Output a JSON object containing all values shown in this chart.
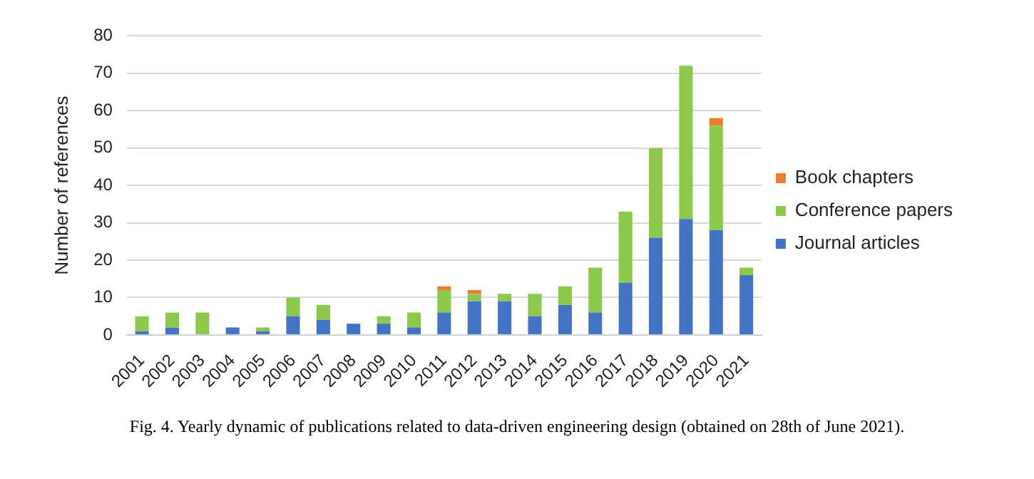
{
  "chart_data": {
    "type": "bar",
    "stacked": true,
    "ylabel": "Number of references",
    "categories": [
      "2001",
      "2002",
      "2003",
      "2004",
      "2005",
      "2006",
      "2007",
      "2008",
      "2009",
      "2010",
      "2011",
      "2012",
      "2013",
      "2014",
      "2015",
      "2016",
      "2017",
      "2018",
      "2019",
      "2020",
      "2021"
    ],
    "series": [
      {
        "name": "Journal articles",
        "color": "#4472c4",
        "values": [
          1,
          2,
          0,
          2,
          1,
          5,
          4,
          3,
          3,
          2,
          6,
          9,
          9,
          5,
          8,
          6,
          14,
          26,
          31,
          28,
          16
        ]
      },
      {
        "name": "Conference papers",
        "color": "#8cc94a",
        "values": [
          4,
          4,
          6,
          0,
          1,
          5,
          4,
          0,
          2,
          4,
          6,
          2,
          2,
          6,
          5,
          12,
          19,
          24,
          41,
          28,
          2
        ]
      },
      {
        "name": "Book chapters",
        "color": "#ed7d31",
        "values": [
          0,
          0,
          0,
          0,
          0,
          0,
          0,
          0,
          0,
          0,
          1,
          1,
          0,
          0,
          0,
          0,
          0,
          0,
          0,
          2,
          0
        ]
      }
    ],
    "ylim": [
      0,
      80
    ],
    "yticks": [
      0,
      10,
      20,
      30,
      40,
      50,
      60,
      70,
      80
    ],
    "grid": "y",
    "legend": "right",
    "annotations": [
      "Fig. 4. Yearly dynamic of publications related to data-driven engineering design (obtained on 28th of June 2021)."
    ]
  }
}
